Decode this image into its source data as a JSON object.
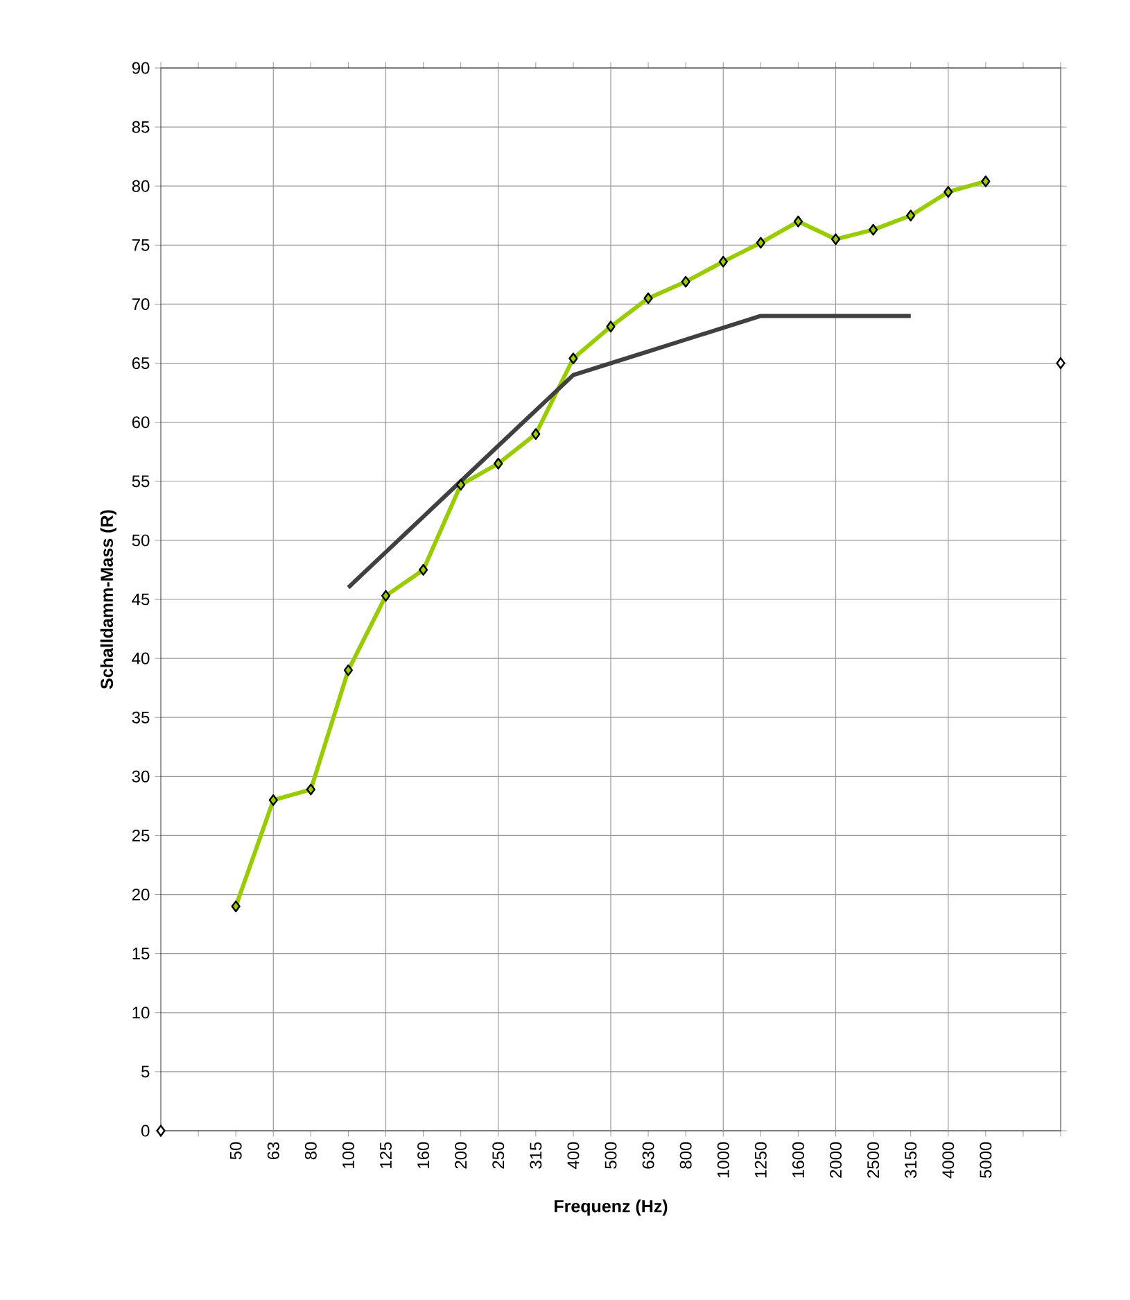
{
  "chart_data": {
    "type": "line",
    "xlabel": "Frequenz (Hz)",
    "ylabel": "Schalldamm-Mass (R)",
    "categories": [
      null,
      null,
      "50",
      "63",
      "80",
      "100",
      "125",
      "160",
      "200",
      "250",
      "315",
      "400",
      "500",
      "630",
      "800",
      "1000",
      "1250",
      "1600",
      "2000",
      "2500",
      "3150",
      "4000",
      "5000",
      null,
      null
    ],
    "series": [
      {
        "color": "#99cc00",
        "marker": "diamond",
        "values": [
          null,
          null,
          19,
          28,
          28.9,
          39,
          45.3,
          47.5,
          54.7,
          56.5,
          59,
          65.4,
          68.1,
          70.5,
          71.9,
          73.6,
          75.2,
          77,
          75.5,
          76.3,
          77.5,
          79.5,
          80.4,
          null,
          null
        ]
      },
      {
        "color": "#404040",
        "marker": "none",
        "values": [
          null,
          null,
          null,
          null,
          null,
          46,
          49,
          52,
          55,
          58,
          61,
          64,
          65,
          66,
          67,
          68,
          69,
          69,
          69,
          69,
          69,
          null,
          null,
          null,
          null
        ]
      },
      {
        "type": "scatter",
        "color": "#ffffff",
        "marker": "diamond",
        "values": [
          0,
          null,
          null,
          null,
          null,
          null,
          null,
          null,
          null,
          null,
          null,
          null,
          null,
          null,
          null,
          null,
          null,
          null,
          null,
          null,
          null,
          null,
          null,
          null,
          65
        ]
      }
    ],
    "ylim": [
      0,
      90
    ],
    "yticks": [
      0,
      5,
      10,
      15,
      20,
      25,
      30,
      35,
      40,
      45,
      50,
      55,
      60,
      65,
      70,
      75,
      80,
      85,
      90
    ],
    "grid": true
  }
}
